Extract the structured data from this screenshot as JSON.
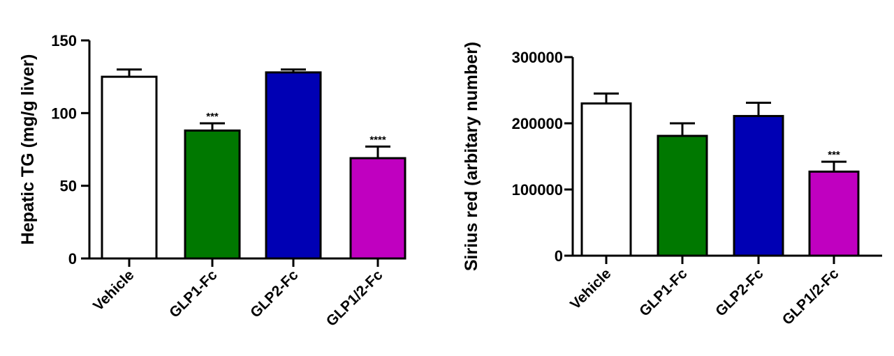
{
  "chart_data": [
    {
      "type": "bar",
      "title": "",
      "xlabel": "",
      "ylabel": "Hepatic TG (mg/g liver)",
      "ylim": [
        0,
        150
      ],
      "yticks": [
        "0",
        "50",
        "100",
        "150"
      ],
      "categories": [
        "Vehicle",
        "GLP1-Fc",
        "GLP2-Fc",
        "GLP1/2-Fc"
      ],
      "values": [
        125,
        88,
        128,
        69
      ],
      "errors": [
        5,
        5,
        2,
        8
      ],
      "significance": [
        "",
        "***",
        "",
        "****"
      ],
      "colors": [
        "#ffffff",
        "#007800",
        "#0000b4",
        "#c000c0"
      ],
      "grid": false
    },
    {
      "type": "bar",
      "title": "",
      "xlabel": "",
      "ylabel": "Sirius red (arbitary number)",
      "ylim": [
        0,
        300000
      ],
      "yticks": [
        "0",
        "100000",
        "200000",
        "300000"
      ],
      "categories": [
        "Vehicle",
        "GLP1-Fc",
        "GLP2-Fc",
        "GLP1/2-Fc"
      ],
      "values": [
        230000,
        181000,
        211000,
        127000
      ],
      "errors": [
        15000,
        19000,
        20000,
        15000
      ],
      "significance": [
        "",
        "",
        "",
        "***"
      ],
      "colors": [
        "#ffffff",
        "#007800",
        "#0000b4",
        "#c000c0"
      ],
      "grid": false
    }
  ]
}
